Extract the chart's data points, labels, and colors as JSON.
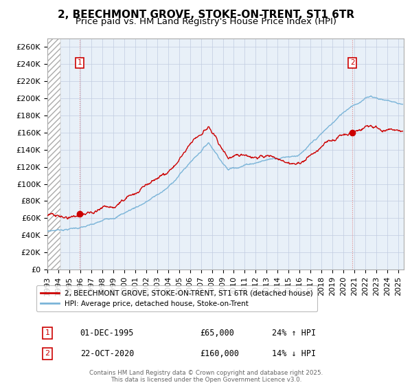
{
  "title": "2, BEECHMONT GROVE, STOKE-ON-TRENT, ST1 6TR",
  "subtitle": "Price paid vs. HM Land Registry's House Price Index (HPI)",
  "ylabel_ticks": [
    "£0",
    "£20K",
    "£40K",
    "£60K",
    "£80K",
    "£100K",
    "£120K",
    "£140K",
    "£160K",
    "£180K",
    "£200K",
    "£220K",
    "£240K",
    "£260K"
  ],
  "ylim": [
    0,
    270000
  ],
  "xlim_start": 1993.0,
  "xlim_end": 2025.5,
  "sale1_date": 1995.92,
  "sale1_price": 65000,
  "sale1_label": "1",
  "sale2_date": 2020.81,
  "sale2_price": 160000,
  "sale2_label": "2",
  "hpi_color": "#7ab4d8",
  "price_color": "#cc0000",
  "annotation_box_color": "#cc0000",
  "plot_bg_color": "#e8f0f8",
  "legend_label_price": "2, BEECHMONT GROVE, STOKE-ON-TRENT, ST1 6TR (detached house)",
  "legend_label_hpi": "HPI: Average price, detached house, Stoke-on-Trent",
  "footer_text": "Contains HM Land Registry data © Crown copyright and database right 2025.\nThis data is licensed under the Open Government Licence v3.0.",
  "ann1_date": "01-DEC-1995",
  "ann1_price": "£65,000",
  "ann1_hpi": "24% ↑ HPI",
  "ann2_date": "22-OCT-2020",
  "ann2_price": "£160,000",
  "ann2_hpi": "14% ↓ HPI",
  "grid_color": "#c0cce0",
  "title_fontsize": 11,
  "subtitle_fontsize": 9.5,
  "tick_fontsize": 8,
  "hatch_end": 1994.2
}
